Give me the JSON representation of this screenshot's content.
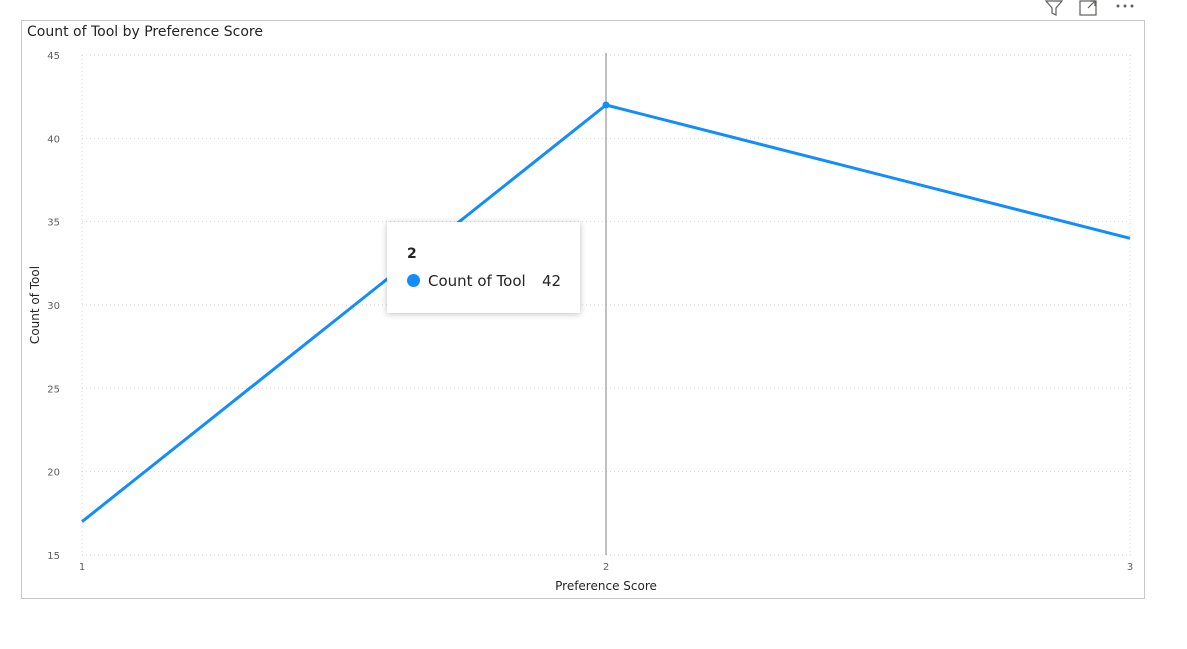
{
  "colors": {
    "series": "#118dff",
    "crosshair": "#808080",
    "grid": "#d9d9d9"
  },
  "header_icons": [
    "filter-icon",
    "focus-mode-icon",
    "more-options-icon"
  ],
  "chart_data": {
    "type": "line",
    "title": "Count of Tool by Preference Score",
    "xlabel": "Preference Score",
    "ylabel": "Count of Tool",
    "categories": [
      "1",
      "2",
      "3"
    ],
    "series": [
      {
        "name": "Count of Tool",
        "values": [
          17,
          42,
          34
        ]
      }
    ],
    "ylim": [
      15,
      45
    ],
    "yticks": [
      15,
      20,
      25,
      30,
      35,
      40,
      45
    ],
    "grid": true,
    "hovered_category": "2"
  },
  "tooltip": {
    "header": "2",
    "label": "Count of Tool",
    "value": "42"
  }
}
